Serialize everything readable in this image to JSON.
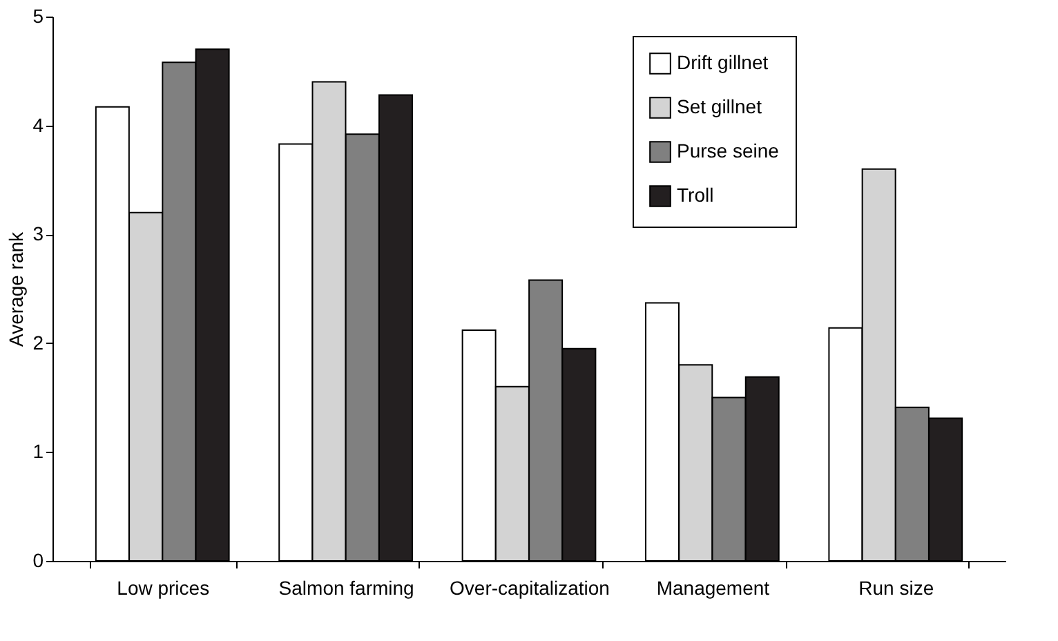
{
  "chart_data": {
    "type": "bar",
    "ylabel": "Average rank",
    "categories": [
      "Low prices",
      "Salmon farming",
      "Over-capitalization",
      "Management",
      "Run size"
    ],
    "series": [
      {
        "name": "Drift gillnet",
        "color": "#ffffff",
        "values": [
          4.17,
          3.83,
          2.12,
          2.37,
          2.14
        ]
      },
      {
        "name": "Set gillnet",
        "color": "#d3d3d3",
        "values": [
          3.2,
          4.4,
          1.6,
          1.8,
          3.6
        ]
      },
      {
        "name": "Purse seine",
        "color": "#808080",
        "values": [
          4.58,
          3.92,
          2.58,
          1.5,
          1.41
        ]
      },
      {
        "name": "Troll",
        "color": "#231f20",
        "values": [
          4.7,
          4.28,
          1.95,
          1.69,
          1.31
        ]
      }
    ],
    "ylim": [
      0,
      5
    ],
    "yticks": [
      0,
      1,
      2,
      3,
      4,
      5
    ],
    "grid": false,
    "legend": "top right"
  }
}
